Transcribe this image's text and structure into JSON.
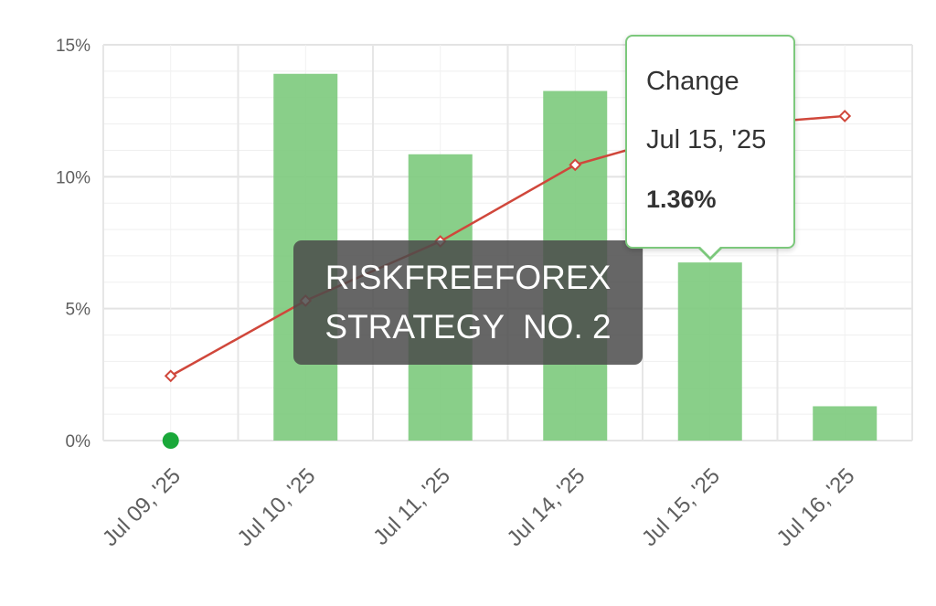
{
  "chart_data": {
    "type": "bar",
    "categories": [
      "Jul 09, '25",
      "Jul 10, '25",
      "Jul 11, '25",
      "Jul 14, '25",
      "Jul 15, '25",
      "Jul 16, '25"
    ],
    "series": [
      {
        "type": "bar",
        "values": [
          0,
          13.9,
          10.85,
          13.25,
          6.75,
          1.3
        ],
        "color": "#7fcb7f"
      },
      {
        "type": "line",
        "values": [
          2.45,
          5.3,
          7.55,
          10.45,
          11.9,
          12.3
        ],
        "color": "#d0473b"
      }
    ],
    "yticks": [
      "0%",
      "5%",
      "10%",
      "15%"
    ],
    "ylim": [
      0,
      15
    ],
    "grid": true,
    "marker_color": "#1aa83a"
  },
  "watermark": {
    "line1": "RISKFREEFOREX",
    "line2": "STRATEGY  NO. 2"
  },
  "tooltip": {
    "title": "Change",
    "date": "Jul 15, '25",
    "value": "1.36%"
  }
}
